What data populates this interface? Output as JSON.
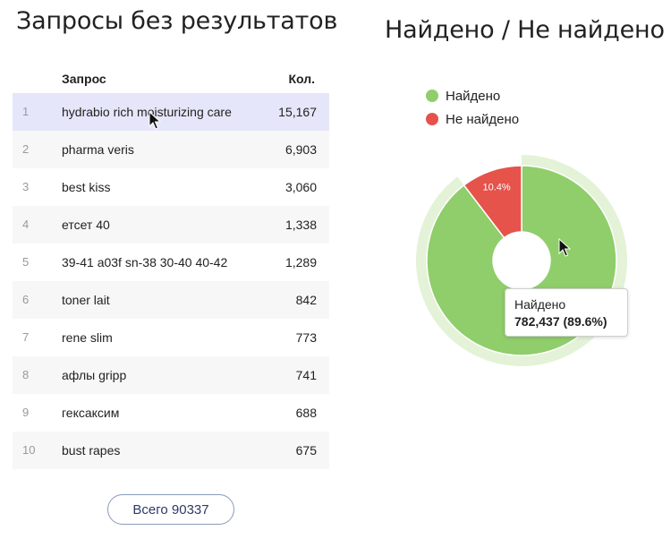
{
  "left_title": "Запросы без результатов",
  "right_title": "Найдено / Не найдено",
  "table": {
    "headers": {
      "query": "Запрос",
      "count": "Кол."
    },
    "rows": [
      {
        "num": "1",
        "query": "hydrabio rich moisturizing care",
        "count": "15,167"
      },
      {
        "num": "2",
        "query": "pharma veris",
        "count": "6,903"
      },
      {
        "num": "3",
        "query": "best kiss",
        "count": "3,060"
      },
      {
        "num": "4",
        "query": "етсет 40",
        "count": "1,338"
      },
      {
        "num": "5",
        "query": "39-41 a03f sn-38 30-40 40-42",
        "count": "1,289"
      },
      {
        "num": "6",
        "query": "toner lait",
        "count": "842"
      },
      {
        "num": "7",
        "query": "rene slim",
        "count": "773"
      },
      {
        "num": "8",
        "query": "афлы gripp",
        "count": "741"
      },
      {
        "num": "9",
        "query": "гексаксим",
        "count": "688"
      },
      {
        "num": "10",
        "query": "bust rapes",
        "count": "675"
      }
    ]
  },
  "total_button": "Всего 90337",
  "chart_data": {
    "type": "pie",
    "title": "Найдено / Не найдено",
    "legend_position": "top-left",
    "slices": [
      {
        "name": "Найдено",
        "percent": 89.6,
        "value": 782437,
        "color": "#8fce6a"
      },
      {
        "name": "Не найдено",
        "percent": 10.4,
        "color": "#e5534b"
      }
    ],
    "slice_labels": {
      "not_found": "10.4%"
    },
    "tooltip": {
      "name": "Найдено",
      "value": "782,437 (89.6%)"
    }
  }
}
